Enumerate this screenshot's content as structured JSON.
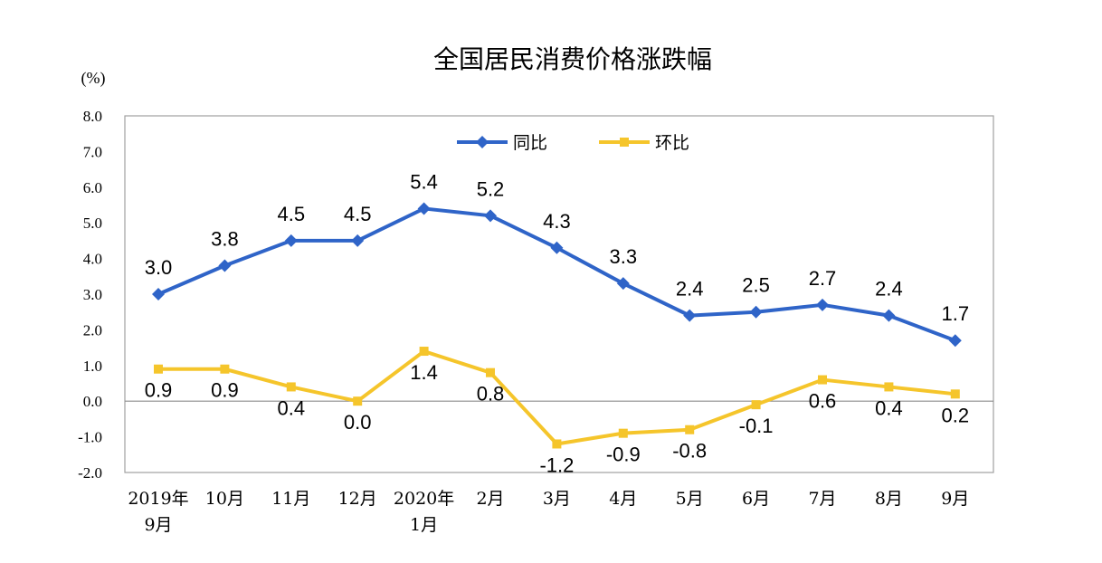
{
  "chart_data": {
    "type": "line",
    "title": "全国居民消费价格涨跌幅",
    "ylabel": "(%)",
    "xlabel": "",
    "ylim": [
      -2.0,
      8.0
    ],
    "yticks": [
      "8.0",
      "7.0",
      "6.0",
      "5.0",
      "4.0",
      "3.0",
      "2.0",
      "1.0",
      "0.0",
      "-1.0",
      "-2.0"
    ],
    "categories": [
      [
        "2019年",
        "9月"
      ],
      [
        "10月"
      ],
      [
        "11月"
      ],
      [
        "12月"
      ],
      [
        "2020年",
        "1月"
      ],
      [
        "2月"
      ],
      [
        "3月"
      ],
      [
        "4月"
      ],
      [
        "5月"
      ],
      [
        "6月"
      ],
      [
        "7月"
      ],
      [
        "8月"
      ],
      [
        "9月"
      ]
    ],
    "series": [
      {
        "name": "同比",
        "color": "#2f64c8",
        "marker": "diamond",
        "values": [
          3.0,
          3.8,
          4.5,
          4.5,
          5.4,
          5.2,
          4.3,
          3.3,
          2.4,
          2.5,
          2.7,
          2.4,
          1.7
        ],
        "labels": [
          "3.0",
          "3.8",
          "4.5",
          "4.5",
          "5.4",
          "5.2",
          "4.3",
          "3.3",
          "2.4",
          "2.5",
          "2.7",
          "2.4",
          "1.7"
        ]
      },
      {
        "name": "环比",
        "color": "#f5c52b",
        "marker": "square",
        "values": [
          0.9,
          0.9,
          0.4,
          0.0,
          1.4,
          0.8,
          -1.2,
          -0.9,
          -0.8,
          -0.1,
          0.6,
          0.4,
          0.2
        ],
        "labels": [
          "0.9",
          "0.9",
          "0.4",
          "0.0",
          "1.4",
          "0.8",
          "-1.2",
          "-0.9",
          "-0.8",
          "-0.1",
          "0.6",
          "0.4",
          "0.2"
        ]
      }
    ],
    "legend": {
      "position": "top-center"
    },
    "grid": false
  }
}
